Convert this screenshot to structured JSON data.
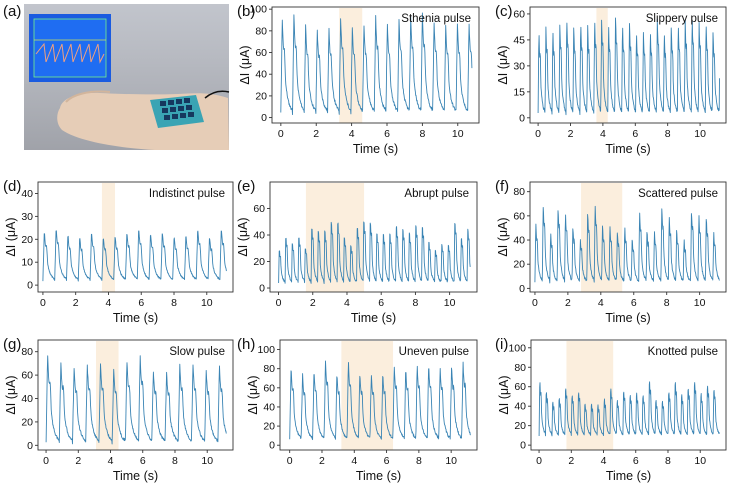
{
  "figure": {
    "photo_label": "(a)",
    "colors": {
      "signal": "#3a84b4",
      "highlight": "#fbeedd",
      "axis": "#333333"
    }
  },
  "chart_data": [
    {
      "label": "(b)",
      "type": "line",
      "title": "Sthenia pulse",
      "xlabel": "Time (s)",
      "ylabel": "ΔI (μA)",
      "xlim": [
        -0.5,
        11.2
      ],
      "ylim": [
        -5,
        102
      ],
      "xticks": [
        0,
        2,
        4,
        6,
        8,
        10
      ],
      "yticks": [
        0,
        20,
        40,
        60,
        80,
        100
      ],
      "period": 0.66,
      "peak": 90,
      "base": 4,
      "notch": 0.55,
      "shape": "sharp",
      "highlight": [
        3.3,
        4.6
      ]
    },
    {
      "label": "(c)",
      "type": "line",
      "title": "Slippery pulse",
      "xlabel": "Time (s)",
      "ylabel": "ΔI (μA)",
      "xlim": [
        -0.5,
        11.6
      ],
      "ylim": [
        -3,
        64
      ],
      "xticks": [
        0,
        2,
        4,
        6,
        8,
        10
      ],
      "yticks": [
        0,
        15,
        30,
        45,
        60
      ],
      "period": 0.43,
      "peak": 56,
      "base": 2,
      "notch": 0.65,
      "shape": "sharp",
      "highlight": [
        3.6,
        4.3
      ]
    },
    {
      "label": "(d)",
      "type": "line",
      "title": "Indistinct pulse",
      "xlabel": "Time (s)",
      "ylabel": "ΔI (μA)",
      "xlim": [
        -0.3,
        11.6
      ],
      "ylim": [
        -3,
        45
      ],
      "xticks": [
        0,
        2,
        4,
        6,
        8,
        10
      ],
      "yticks": [
        0,
        10,
        20,
        30,
        40
      ],
      "period": 0.72,
      "peak": 24,
      "base": 2,
      "notch": 0.6,
      "shape": "sharp",
      "highlight": [
        3.6,
        4.4
      ]
    },
    {
      "label": "(e)",
      "type": "line",
      "title": "Abrupt pulse",
      "xlabel": "Time (s)",
      "ylabel": "ΔI (μA)",
      "xlim": [
        -0.5,
        11.6
      ],
      "ylim": [
        -3,
        80
      ],
      "xticks": [
        0,
        2,
        4,
        6,
        8,
        10
      ],
      "yticks": [
        0,
        20,
        40,
        60
      ],
      "period": 0.38,
      "peak": 52,
      "base": 4,
      "notch": 0.75,
      "shape": "irregular",
      "highlight": [
        1.6,
        5.0
      ]
    },
    {
      "label": "(f)",
      "type": "line",
      "title": "Scattered pulse",
      "xlabel": "Time (s)",
      "ylabel": "ΔI (μA)",
      "xlim": [
        -0.3,
        11.6
      ],
      "ylim": [
        -3,
        88
      ],
      "xticks": [
        0,
        2,
        4,
        6,
        8,
        10
      ],
      "yticks": [
        0,
        20,
        40,
        60,
        80
      ],
      "period": 0.45,
      "peak": 66,
      "base": 5,
      "notch": 0.7,
      "shape": "irregular",
      "highlight": [
        2.8,
        5.3
      ]
    },
    {
      "label": "(g)",
      "type": "line",
      "title": "Slow pulse",
      "xlabel": "Time (s)",
      "ylabel": "ΔI (μA)",
      "xlim": [
        -0.5,
        11.6
      ],
      "ylim": [
        -4,
        90
      ],
      "xticks": [
        0,
        2,
        4,
        6,
        8,
        10
      ],
      "yticks": [
        0,
        20,
        40,
        60,
        80
      ],
      "period": 0.82,
      "peak": 72,
      "base": 2,
      "notch": 0.6,
      "shape": "sharp",
      "highlight": [
        3.1,
        4.5
      ]
    },
    {
      "label": "(h)",
      "type": "line",
      "title": "Uneven pulse",
      "xlabel": "Time (s)",
      "ylabel": "ΔI (μA)",
      "xlim": [
        -0.6,
        11.6
      ],
      "ylim": [
        -5,
        110
      ],
      "xticks": [
        0,
        2,
        4,
        6,
        8,
        10
      ],
      "yticks": [
        0,
        20,
        40,
        60,
        80,
        100
      ],
      "period": 0.71,
      "peak": 85,
      "base": 5,
      "notch": 0.65,
      "shape": "sharp",
      "highlight": [
        3.2,
        6.4
      ]
    },
    {
      "label": "(i)",
      "type": "line",
      "title": "Knotted pulse",
      "xlabel": "Time (s)",
      "ylabel": "ΔI (μA)",
      "xlim": [
        -0.5,
        11.6
      ],
      "ylim": [
        -5,
        108
      ],
      "xticks": [
        0,
        2,
        4,
        6,
        8,
        10
      ],
      "yticks": [
        0,
        20,
        40,
        60,
        80,
        100
      ],
      "period": 0.4,
      "peak": 68,
      "base": 10,
      "notch": 0.75,
      "shape": "irregular",
      "highlight": [
        1.7,
        4.6
      ]
    }
  ]
}
